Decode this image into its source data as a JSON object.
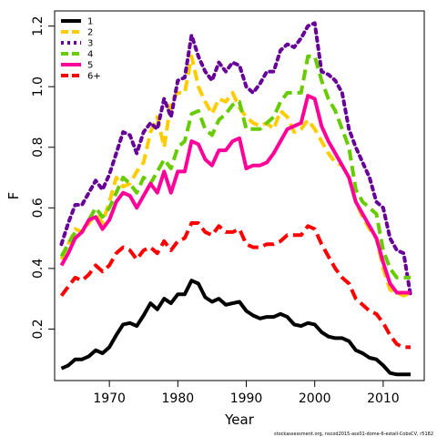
{
  "chart_data": {
    "type": "line",
    "xlabel": "Year",
    "ylabel": "F",
    "xlim": [
      1962,
      2016
    ],
    "ylim": [
      0.03,
      1.25
    ],
    "x_ticks": [
      1970,
      1980,
      1990,
      2000,
      2010
    ],
    "y_ticks": [
      0.2,
      0.4,
      0.6,
      0.8,
      1.0,
      1.2
    ],
    "x_tick_labels": [
      "1970",
      "1980",
      "1990",
      "2000",
      "2010"
    ],
    "y_tick_labels": [
      "0.2",
      "0.4",
      "0.6",
      "0.8",
      "1.0",
      "1.2"
    ],
    "legend_position": "top-left",
    "grid": false,
    "footer": "stockassessment.org, nscod2015-ass01-dome-6-estall-CobsCV, r5182",
    "x": [
      1963,
      1964,
      1965,
      1966,
      1967,
      1968,
      1969,
      1970,
      1971,
      1972,
      1973,
      1974,
      1975,
      1976,
      1977,
      1978,
      1979,
      1980,
      1981,
      1982,
      1983,
      1984,
      1985,
      1986,
      1987,
      1988,
      1989,
      1990,
      1991,
      1992,
      1993,
      1994,
      1995,
      1996,
      1997,
      1998,
      1999,
      2000,
      2001,
      2002,
      2003,
      2004,
      2005,
      2006,
      2007,
      2008,
      2009,
      2010,
      2011,
      2012,
      2013,
      2014
    ],
    "series": [
      {
        "name": "1",
        "color": "#000000",
        "dash": "solid",
        "values": [
          0.07,
          0.08,
          0.1,
          0.1,
          0.11,
          0.13,
          0.12,
          0.14,
          0.18,
          0.215,
          0.22,
          0.21,
          0.245,
          0.285,
          0.265,
          0.3,
          0.285,
          0.315,
          0.315,
          0.36,
          0.35,
          0.305,
          0.29,
          0.3,
          0.28,
          0.285,
          0.29,
          0.26,
          0.245,
          0.235,
          0.24,
          0.24,
          0.25,
          0.24,
          0.215,
          0.21,
          0.22,
          0.215,
          0.19,
          0.175,
          0.17,
          0.17,
          0.16,
          0.13,
          0.12,
          0.105,
          0.1,
          0.08,
          0.055,
          0.05,
          0.05,
          0.05
        ]
      },
      {
        "name": "2",
        "color": "#ffcc00",
        "dash": "dashed",
        "values": [
          0.43,
          0.48,
          0.53,
          0.52,
          0.55,
          0.58,
          0.55,
          0.62,
          0.7,
          0.67,
          0.68,
          0.72,
          0.75,
          0.85,
          0.9,
          0.8,
          0.95,
          0.98,
          0.98,
          1.1,
          1.0,
          0.95,
          0.91,
          0.96,
          0.95,
          0.98,
          0.93,
          0.9,
          0.88,
          0.87,
          0.88,
          0.86,
          0.92,
          0.9,
          0.85,
          0.86,
          0.89,
          0.86,
          0.82,
          0.78,
          0.75,
          0.74,
          0.7,
          0.62,
          0.57,
          0.53,
          0.5,
          0.4,
          0.33,
          0.32,
          0.31,
          0.32
        ]
      },
      {
        "name": "3",
        "color": "#660099",
        "dash": "dotted",
        "values": [
          0.48,
          0.55,
          0.61,
          0.61,
          0.65,
          0.69,
          0.66,
          0.71,
          0.78,
          0.85,
          0.84,
          0.78,
          0.85,
          0.88,
          0.86,
          0.96,
          0.9,
          1.02,
          1.03,
          1.17,
          1.1,
          1.05,
          1.02,
          1.08,
          1.05,
          1.08,
          1.07,
          1.0,
          0.98,
          1.01,
          1.05,
          1.05,
          1.12,
          1.14,
          1.13,
          1.16,
          1.2,
          1.21,
          1.05,
          1.04,
          1.02,
          0.98,
          0.86,
          0.8,
          0.75,
          0.7,
          0.62,
          0.6,
          0.5,
          0.46,
          0.45,
          0.31
        ]
      },
      {
        "name": "4",
        "color": "#66cc00",
        "dash": "dashed",
        "values": [
          0.44,
          0.48,
          0.52,
          0.52,
          0.56,
          0.6,
          0.57,
          0.6,
          0.65,
          0.7,
          0.68,
          0.65,
          0.7,
          0.68,
          0.72,
          0.76,
          0.73,
          0.8,
          0.82,
          0.91,
          0.92,
          0.86,
          0.84,
          0.89,
          0.91,
          0.94,
          0.95,
          0.86,
          0.86,
          0.86,
          0.88,
          0.9,
          0.95,
          0.98,
          0.98,
          0.98,
          1.1,
          1.1,
          1.02,
          0.96,
          0.92,
          0.86,
          0.8,
          0.66,
          0.62,
          0.6,
          0.58,
          0.46,
          0.4,
          0.37,
          0.37,
          0.37
        ]
      },
      {
        "name": "5",
        "color": "#ff0099",
        "dash": "solid",
        "values": [
          0.41,
          0.45,
          0.5,
          0.52,
          0.56,
          0.57,
          0.53,
          0.56,
          0.62,
          0.65,
          0.64,
          0.6,
          0.64,
          0.68,
          0.65,
          0.72,
          0.65,
          0.72,
          0.72,
          0.82,
          0.81,
          0.76,
          0.74,
          0.79,
          0.79,
          0.82,
          0.83,
          0.73,
          0.74,
          0.74,
          0.75,
          0.78,
          0.82,
          0.86,
          0.87,
          0.88,
          0.97,
          0.96,
          0.87,
          0.82,
          0.78,
          0.74,
          0.7,
          0.62,
          0.58,
          0.54,
          0.5,
          0.42,
          0.35,
          0.32,
          0.32,
          0.32
        ]
      },
      {
        "name": "6+",
        "color": "#ff0000",
        "dash": "dashed",
        "values": [
          0.31,
          0.34,
          0.37,
          0.36,
          0.38,
          0.41,
          0.39,
          0.41,
          0.45,
          0.47,
          0.46,
          0.43,
          0.46,
          0.47,
          0.45,
          0.49,
          0.46,
          0.49,
          0.5,
          0.55,
          0.55,
          0.52,
          0.51,
          0.54,
          0.52,
          0.52,
          0.53,
          0.48,
          0.47,
          0.47,
          0.48,
          0.48,
          0.49,
          0.51,
          0.51,
          0.51,
          0.54,
          0.53,
          0.48,
          0.44,
          0.4,
          0.37,
          0.35,
          0.3,
          0.28,
          0.26,
          0.25,
          0.22,
          0.18,
          0.15,
          0.14,
          0.14
        ]
      }
    ]
  }
}
